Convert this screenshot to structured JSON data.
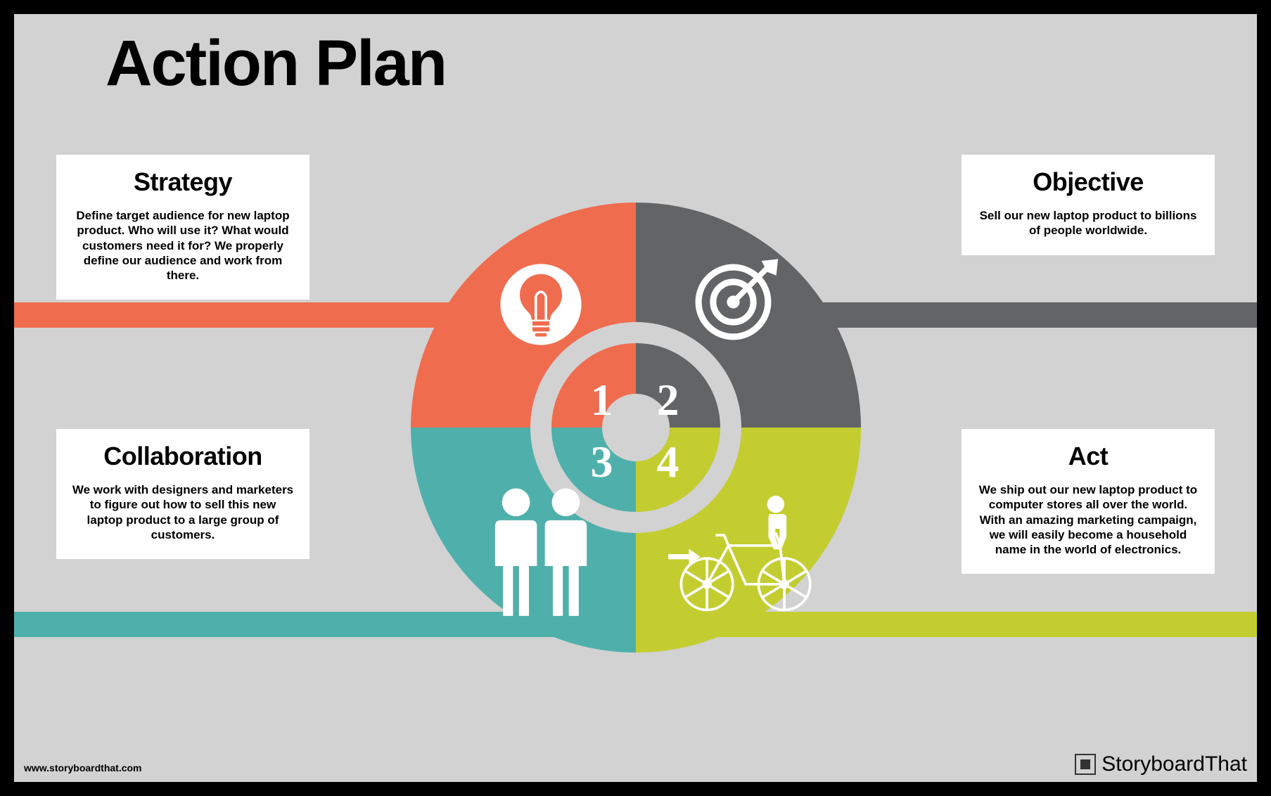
{
  "title": "Action Plan",
  "background_color": "#d2d2d2",
  "frame_border_color": "#000000",
  "hub_color": "#d2d2d2",
  "ring_color": "#d2d2d2",
  "connector_height": 36,
  "pie_diameter": 640,
  "ring_outer_diameter": 300,
  "ring_inner_diameter": 240,
  "hub_diameter": 96,
  "title_fontsize": 92,
  "card_title_fontsize": 36,
  "card_body_fontsize": 17,
  "number_fontsize": 64,
  "number_color": "#ffffff",
  "quadrants": [
    {
      "num": "1",
      "color": "#ef6c4f",
      "card_title": "Strategy",
      "card_body": "Define target audience for new laptop product. Who will use it? What would customers need it for? We properly define our audience and work from there.",
      "icon": "lightbulb"
    },
    {
      "num": "2",
      "color": "#636466",
      "card_title": "Objective",
      "card_body": "Sell our new laptop product to billions of people worldwide.",
      "icon": "target"
    },
    {
      "num": "3",
      "color": "#4fb0ab",
      "card_title": "Collaboration",
      "card_body": "We work with designers and marketers to figure out how to sell this new laptop product to a large group of customers.",
      "icon": "people"
    },
    {
      "num": "4",
      "color": "#c3cd30",
      "card_title": "Act",
      "card_body": "We ship out our new laptop product to computer stores all over the world. With an amazing marketing campaign, we will easily become a household name in the world of electronics.",
      "icon": "bicycle"
    }
  ],
  "footer": {
    "url": "www.storyboardthat.com",
    "brand_part1": "Storyboard",
    "brand_part2": "That"
  }
}
